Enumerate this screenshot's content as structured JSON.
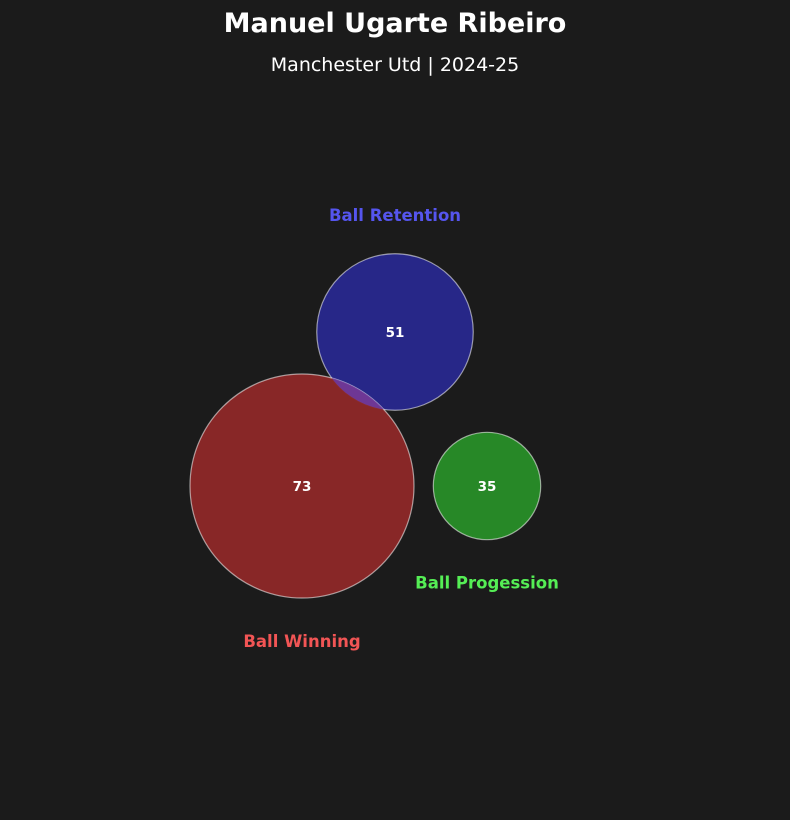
{
  "header": {
    "title": "Manuel Ugarte Ribeiro",
    "subtitle": "Manchester Utd | 2024-25"
  },
  "chart_data": {
    "type": "bubble",
    "bubbles": [
      {
        "label": "Ball Retention",
        "value": 51,
        "fill": "#28288c",
        "label_color": "#5555ee"
      },
      {
        "label": "Ball Winning",
        "value": 73,
        "fill": "#8c2828",
        "label_color": "#f25555"
      },
      {
        "label": "Ball Progession",
        "value": 35,
        "fill": "#288c28",
        "label_color": "#55ee55"
      }
    ]
  }
}
